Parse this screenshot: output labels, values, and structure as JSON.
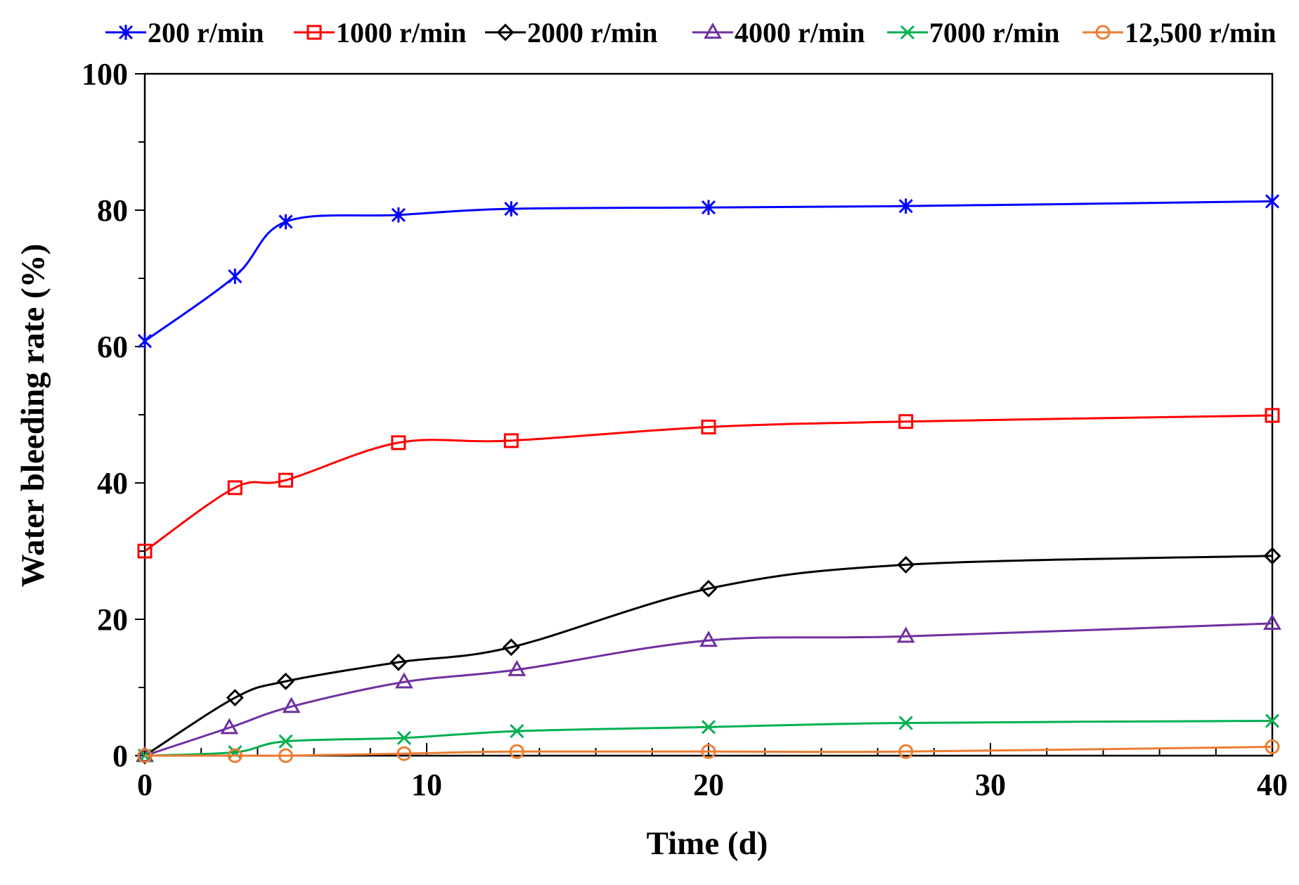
{
  "chart_data": {
    "type": "line",
    "title": "",
    "xlabel": "Time (d)",
    "ylabel": "Water bleeding rate (%)",
    "xlim": [
      0,
      40
    ],
    "ylim": [
      0,
      100
    ],
    "x_ticks": [
      0,
      10,
      20,
      30,
      40
    ],
    "y_ticks": [
      0,
      20,
      40,
      60,
      80,
      100
    ],
    "x_tick_labels": [
      "0",
      "10",
      "20",
      "30",
      "40"
    ],
    "y_tick_labels": [
      "0",
      "20",
      "40",
      "60",
      "80",
      "100"
    ],
    "legend_position": "top",
    "grid": false,
    "series": [
      {
        "name": "200 r/min",
        "color": "#0000FF",
        "marker": "asterisk",
        "x": [
          0,
          3.2,
          5.0,
          9.0,
          13.0,
          20.0,
          27.0,
          40.0
        ],
        "values": [
          60.8,
          70.3,
          78.3,
          79.3,
          80.2,
          80.4,
          80.6,
          81.3
        ]
      },
      {
        "name": "1000 r/min",
        "color": "#FF0000",
        "marker": "square",
        "x": [
          0,
          3.2,
          5.0,
          9.0,
          13.0,
          20.0,
          27.0,
          40.0
        ],
        "values": [
          30.0,
          39.3,
          40.4,
          45.9,
          46.2,
          48.2,
          49.0,
          49.9
        ]
      },
      {
        "name": "2000 r/min",
        "color": "#000000",
        "marker": "diamond",
        "x": [
          0,
          3.2,
          5.0,
          9.0,
          13.0,
          20.0,
          27.0,
          40.0
        ],
        "values": [
          0.0,
          8.5,
          10.9,
          13.7,
          15.9,
          24.5,
          28.0,
          29.3
        ]
      },
      {
        "name": "4000 r/min",
        "color": "#7030A0",
        "marker": "triangle",
        "x": [
          0,
          3.0,
          5.2,
          9.2,
          13.2,
          20.0,
          27.0,
          40.0
        ],
        "values": [
          0.0,
          4.1,
          7.2,
          10.8,
          12.6,
          16.9,
          17.5,
          19.4
        ]
      },
      {
        "name": "7000 r/min",
        "color": "#00B050",
        "marker": "x",
        "x": [
          0,
          3.2,
          5.0,
          9.2,
          13.2,
          20.0,
          27.0,
          40.0
        ],
        "values": [
          0.0,
          0.5,
          2.1,
          2.6,
          3.6,
          4.2,
          4.8,
          5.1
        ]
      },
      {
        "name": "12,500 r/min",
        "color": "#ED7D31",
        "marker": "circle",
        "x": [
          0,
          3.2,
          5.0,
          9.2,
          13.2,
          20.0,
          27.0,
          40.0
        ],
        "values": [
          0.0,
          0.0,
          0.0,
          0.3,
          0.6,
          0.6,
          0.6,
          1.3
        ]
      }
    ]
  }
}
